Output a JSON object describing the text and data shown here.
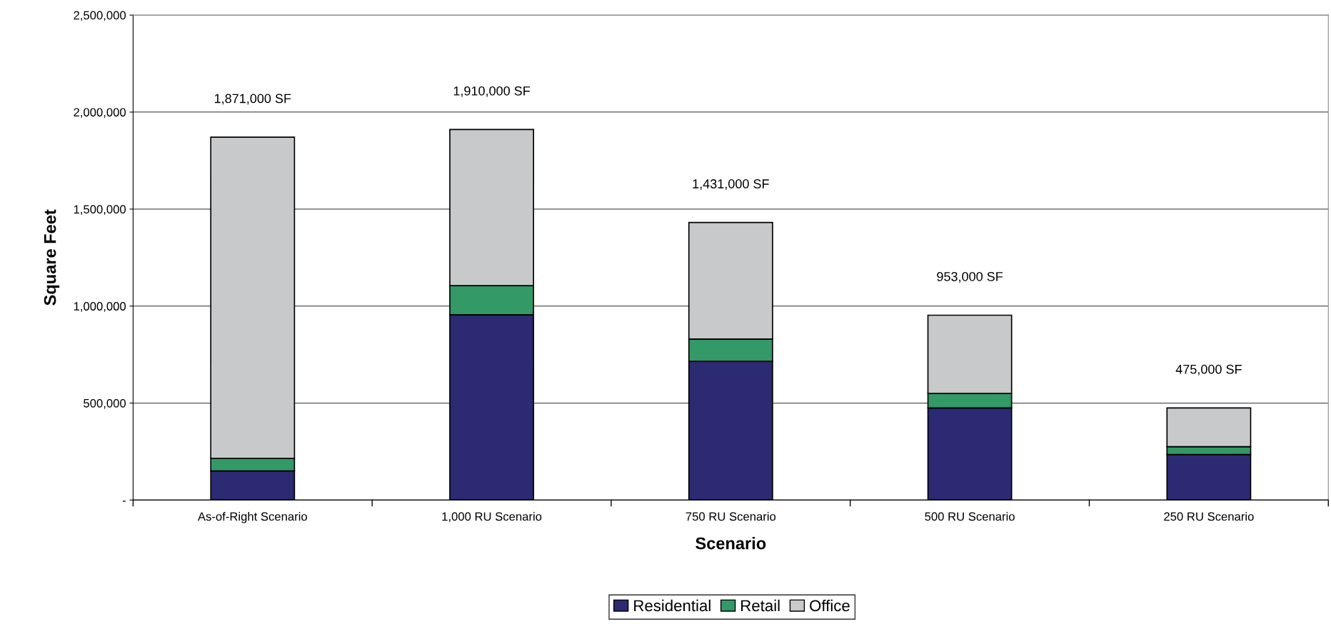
{
  "chart_data": {
    "type": "bar",
    "stacked": true,
    "xlabel": "Scenario",
    "ylabel": "Square Feet",
    "categories": [
      "As-of-Right Scenario",
      "1,000 RU Scenario",
      "750 RU Scenario",
      "500 RU Scenario",
      "250 RU Scenario"
    ],
    "series": [
      {
        "name": "Residential",
        "color": "#2b2a73",
        "values": [
          150000,
          955000,
          715000,
          475000,
          235000
        ]
      },
      {
        "name": "Retail",
        "color": "#339966",
        "values": [
          65000,
          150000,
          115000,
          75000,
          40000
        ]
      },
      {
        "name": "Office",
        "color": "#c8c9cb",
        "values": [
          1656000,
          805000,
          601000,
          403000,
          200000
        ]
      }
    ],
    "totals": [
      "1,871,000 SF",
      "1,910,000 SF",
      "1,431,000 SF",
      "953,000 SF",
      "475,000 SF"
    ],
    "ylim": [
      0,
      2500000
    ],
    "yticks": [
      {
        "value": 0,
        "label": "-"
      },
      {
        "value": 500000,
        "label": "500,000"
      },
      {
        "value": 1000000,
        "label": "1,000,000"
      },
      {
        "value": 1500000,
        "label": "1,500,000"
      },
      {
        "value": 2000000,
        "label": "2,000,000"
      },
      {
        "value": 2500000,
        "label": "2,500,000"
      }
    ],
    "grid": "y",
    "legend": "bottom"
  }
}
